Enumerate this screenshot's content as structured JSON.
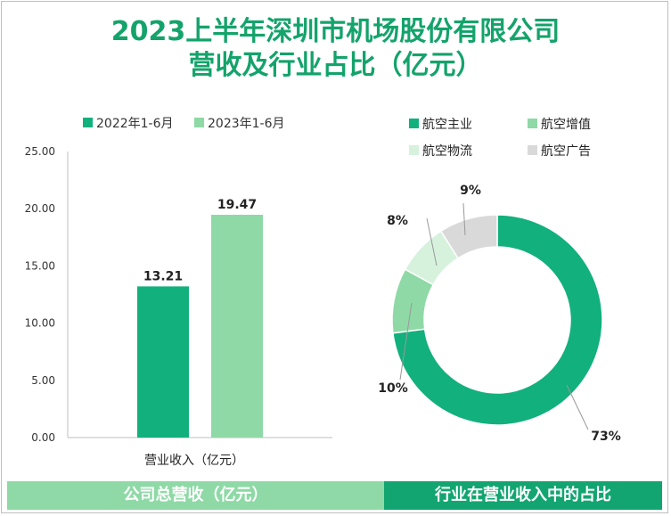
{
  "title": {
    "line1": "2023上半年深圳市机场股份有限公司",
    "line2": "营收及行业占比（亿元）"
  },
  "colors": {
    "title": "#14a36b",
    "dark_green": "#12b07c",
    "light_green": "#8ed9a6",
    "pale_green": "#d6f2dd",
    "grey": "#d9d9d9",
    "footer_left": "#8ed9a6",
    "footer_right": "#13a571"
  },
  "chart_data": [
    {
      "type": "bar",
      "categories": [
        "营业收入（亿元）"
      ],
      "series": [
        {
          "name": "2022年1-6月",
          "values": [
            13.21
          ],
          "labels": [
            "13.21"
          ],
          "color": "#12b07c"
        },
        {
          "name": "2023年1-6月",
          "values": [
            19.47
          ],
          "labels": [
            "19.47"
          ],
          "color": "#8ed9a6"
        }
      ],
      "ylim": [
        0,
        25
      ],
      "yticks": [
        "0.00",
        "5.00",
        "10.00",
        "15.00",
        "20.00",
        "25.00"
      ],
      "legend": "top-left",
      "grid": false
    },
    {
      "type": "pie",
      "style": "donut",
      "slices": [
        {
          "name": "航空主业",
          "value": 73,
          "label": "73%",
          "color": "#12b07c"
        },
        {
          "name": "航空增值",
          "value": 10,
          "label": "10%",
          "color": "#8ed9a6"
        },
        {
          "name": "航空物流",
          "value": 8,
          "label": "8%",
          "color": "#d6f2dd"
        },
        {
          "name": "航空广告",
          "value": 9,
          "label": "9%",
          "color": "#d9d9d9"
        }
      ],
      "legend": "top"
    }
  ],
  "footer": {
    "left": "公司总营收（亿元）",
    "right": "行业在营业收入中的占比"
  }
}
